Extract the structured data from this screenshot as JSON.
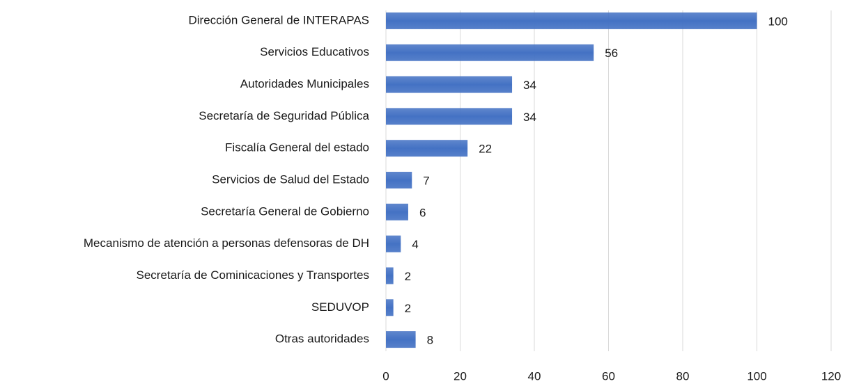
{
  "chart_data": {
    "type": "bar",
    "orientation": "horizontal",
    "categories": [
      "Dirección General de INTERAPAS",
      "Servicios Educativos",
      "Autoridades Municipales",
      "Secretaría de Seguridad Pública",
      "Fiscalía General del estado",
      "Servicios de Salud del Estado",
      "Secretaría General de Gobierno",
      "Mecanismo de atención a personas defensoras de DH",
      "Secretaría de Cominicaciones y Transportes",
      "SEDUVOP",
      "Otras autoridades"
    ],
    "values": [
      100,
      56,
      34,
      34,
      22,
      7,
      6,
      4,
      2,
      2,
      8
    ],
    "color": "#4472c4",
    "xlim": [
      0,
      120
    ],
    "xticks": [
      0,
      20,
      40,
      60,
      80,
      100,
      120
    ],
    "grid": true
  }
}
